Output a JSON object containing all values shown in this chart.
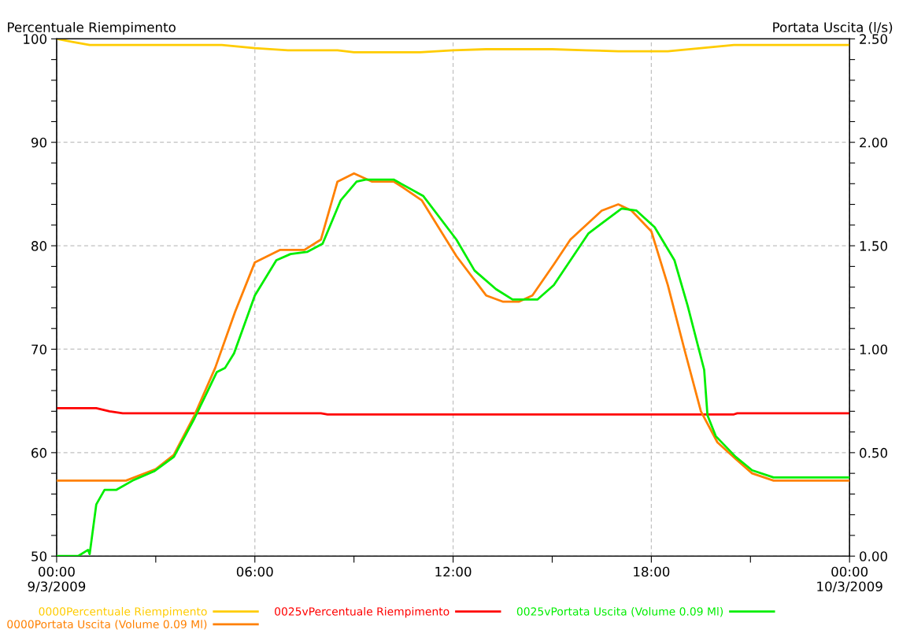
{
  "chart_data": {
    "type": "line",
    "ylabel": "Percentuale Riempimento",
    "y2label": "Portata Uscita (l/s)",
    "xlim": [
      0,
      24
    ],
    "xticks": [
      {
        "value": 0,
        "label": "00:00\n9/3/2009"
      },
      {
        "value": 3,
        "label": null
      },
      {
        "value": 6,
        "label": "06:00"
      },
      {
        "value": 9,
        "label": null
      },
      {
        "value": 12,
        "label": "12:00"
      },
      {
        "value": 15,
        "label": null
      },
      {
        "value": 18,
        "label": "18:00"
      },
      {
        "value": 21,
        "label": null
      },
      {
        "value": 24,
        "label": "00:00\n10/3/2009"
      }
    ],
    "ylim": [
      50,
      100
    ],
    "yticks": [
      50,
      {
        "value": 52,
        "label": null
      },
      {
        "value": 54,
        "label": null
      },
      {
        "value": 56,
        "label": null
      },
      {
        "value": 58,
        "label": null
      },
      60,
      {
        "value": 62,
        "label": null
      },
      {
        "value": 64,
        "label": null
      },
      {
        "value": 66,
        "label": null
      },
      {
        "value": 68,
        "label": null
      },
      70,
      {
        "value": 72,
        "label": null
      },
      {
        "value": 74,
        "label": null
      },
      {
        "value": 76,
        "label": null
      },
      {
        "value": 78,
        "label": null
      },
      80,
      {
        "value": 82,
        "label": null
      },
      {
        "value": 84,
        "label": null
      },
      {
        "value": 86,
        "label": null
      },
      {
        "value": 88,
        "label": null
      },
      90,
      {
        "value": 92,
        "label": null
      },
      {
        "value": 94,
        "label": null
      },
      {
        "value": 96,
        "label": null
      },
      {
        "value": 98,
        "label": null
      },
      100
    ],
    "y2lim": [
      0,
      2.5
    ],
    "y2ticks": [
      {
        "value": 0,
        "label": "0.00"
      },
      {
        "value": 0.1,
        "label": null
      },
      {
        "value": 0.2,
        "label": null
      },
      {
        "value": 0.3,
        "label": null
      },
      {
        "value": 0.4,
        "label": null
      },
      {
        "value": 0.5,
        "label": "0.50"
      },
      {
        "value": 0.6,
        "label": null
      },
      {
        "value": 0.7,
        "label": null
      },
      {
        "value": 0.8,
        "label": null
      },
      {
        "value": 0.9,
        "label": null
      },
      {
        "value": 1.0,
        "label": "1.00"
      },
      {
        "value": 1.1,
        "label": null
      },
      {
        "value": 1.2,
        "label": null
      },
      {
        "value": 1.3,
        "label": null
      },
      {
        "value": 1.4,
        "label": null
      },
      {
        "value": 1.5,
        "label": "1.50"
      },
      {
        "value": 1.6,
        "label": null
      },
      {
        "value": 1.7,
        "label": null
      },
      {
        "value": 1.8,
        "label": null
      },
      {
        "value": 1.9,
        "label": null
      },
      {
        "value": 2.0,
        "label": "2.00"
      },
      {
        "value": 2.1,
        "label": null
      },
      {
        "value": 2.2,
        "label": null
      },
      {
        "value": 2.3,
        "label": null
      },
      {
        "value": 2.4,
        "label": null
      },
      {
        "value": 2.5,
        "label": "2.50"
      }
    ],
    "grid": true,
    "legend": "bottom",
    "marker": "none",
    "line_style": "solid",
    "series": [
      {
        "name": "0000Percentuale Riempimento",
        "color": "#ffcc00",
        "x": [
          0,
          0.5,
          1,
          5,
          6,
          7,
          8.5,
          9,
          11,
          12,
          13,
          15,
          16,
          17,
          18.5,
          19.5,
          20.5,
          24
        ],
        "values": [
          100,
          99.7,
          99.4,
          99.4,
          99.1,
          98.9,
          98.9,
          98.7,
          98.7,
          98.9,
          99.0,
          99.0,
          98.9,
          98.8,
          98.8,
          99.1,
          99.4,
          99.4
        ]
      },
      {
        "name": "0000Portata Uscita (Volume 0.09 Ml)",
        "color": "#ff8000",
        "axis": "y2",
        "x": [
          0,
          2.1,
          3.0,
          3.55,
          4.17,
          4.8,
          5.4,
          6.0,
          6.77,
          7.5,
          8.0,
          8.5,
          9.0,
          9.55,
          10.2,
          10.5,
          11.05,
          12.1,
          13.0,
          13.5,
          14.0,
          14.4,
          15.05,
          15.55,
          16.5,
          17.0,
          17.4,
          18.0,
          18.5,
          19.0,
          19.5,
          20.0,
          20.55,
          21.05,
          21.7,
          24
        ],
        "values": [
          0.365,
          0.365,
          0.42,
          0.49,
          0.68,
          0.91,
          1.18,
          1.42,
          1.48,
          1.48,
          1.53,
          1.81,
          1.85,
          1.81,
          1.81,
          1.78,
          1.72,
          1.45,
          1.26,
          1.23,
          1.23,
          1.26,
          1.41,
          1.53,
          1.67,
          1.7,
          1.67,
          1.57,
          1.31,
          1.0,
          0.7,
          0.55,
          0.47,
          0.4,
          0.365,
          0.365
        ]
      },
      {
        "name": "0025vPercentuale Riempimento",
        "color": "#ff0000",
        "x": [
          0,
          1.2,
          1.6,
          2,
          8,
          8.2,
          20.5,
          20.6,
          24
        ],
        "values": [
          64.3,
          64.3,
          64.0,
          63.8,
          63.8,
          63.7,
          63.7,
          63.8,
          63.8
        ]
      },
      {
        "name": "0025vPortata Uscita (Volume 0.09 Ml)",
        "color": "#00ee00",
        "axis": "y2",
        "x": [
          0,
          0.65,
          0.95,
          1.0,
          1.2,
          1.45,
          1.8,
          2.3,
          2.95,
          3.55,
          4.17,
          4.85,
          5.1,
          5.37,
          6.0,
          6.65,
          7.08,
          7.58,
          8.05,
          8.6,
          9.08,
          9.35,
          10.2,
          11.1,
          12.1,
          12.65,
          13.3,
          13.8,
          14.55,
          15.05,
          16.1,
          17.1,
          17.55,
          18.1,
          18.7,
          19.1,
          19.6,
          19.7,
          19.95,
          20.55,
          21.05,
          21.7,
          24
        ],
        "values": [
          0,
          0,
          0.03,
          0.01,
          0.25,
          0.32,
          0.32,
          0.365,
          0.41,
          0.48,
          0.665,
          0.89,
          0.91,
          0.98,
          1.26,
          1.43,
          1.46,
          1.47,
          1.51,
          1.72,
          1.81,
          1.82,
          1.82,
          1.74,
          1.53,
          1.38,
          1.29,
          1.24,
          1.24,
          1.31,
          1.56,
          1.68,
          1.67,
          1.59,
          1.43,
          1.21,
          0.9,
          0.68,
          0.58,
          0.48,
          0.415,
          0.38,
          0.38
        ]
      }
    ]
  }
}
